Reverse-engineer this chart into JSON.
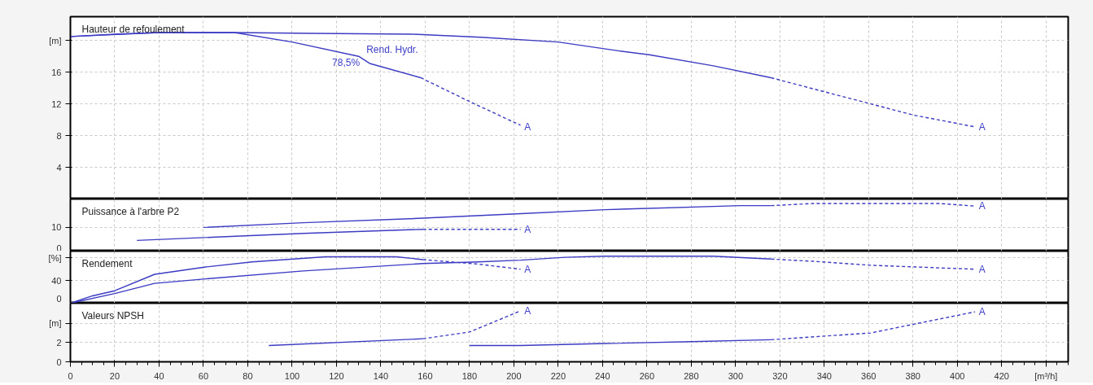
{
  "chart_data": [
    {
      "type": "line",
      "title": "Hauteur de refoulement",
      "xlim": [
        0,
        450
      ],
      "xticks": [
        0,
        20,
        40,
        60,
        80,
        100,
        120,
        140,
        160,
        180,
        200,
        220,
        240,
        260,
        280,
        300,
        320,
        340,
        360,
        380,
        400,
        420,
        440
      ],
      "ylim": [
        0,
        23
      ],
      "yticks": [
        4,
        8,
        12,
        16,
        {
          "value": 20,
          "label": "[m]"
        }
      ],
      "grid": true,
      "tick_labels": "y",
      "series": [
        {
          "color": "#3b3bc4",
          "line_style": "solid",
          "x": [
            0,
            20,
            40,
            74,
            110,
            154,
            185,
            220,
            247,
            261,
            290,
            316
          ],
          "values": [
            20.5,
            20.8,
            21.0,
            21.0,
            20.9,
            20.8,
            20.4,
            19.8,
            18.7,
            18.2,
            16.8,
            15.3
          ]
        },
        {
          "color": "#3b3bc4",
          "line_style": "dashed",
          "x": [
            316,
            335,
            361,
            380,
            408
          ],
          "values": [
            15.3,
            13.9,
            12.0,
            10.6,
            9.1
          ]
        },
        {
          "color": "#3b3bc4",
          "line_style": "solid",
          "x": [
            0,
            40,
            74,
            100,
            130,
            135,
            158
          ],
          "values": [
            20.5,
            21.0,
            21.0,
            19.8,
            18.0,
            17.1,
            15.3
          ]
        },
        {
          "color": "#3b3bc4",
          "line_style": "dashed",
          "x": [
            158,
            180,
            203
          ],
          "values": [
            15.3,
            12.3,
            9.3
          ]
        }
      ],
      "annotations": [
        "Rend. Hydr.",
        {
          "text": "78,5%",
          "x": 132,
          "y": 17.6
        },
        {
          "text": "A",
          "x": 204,
          "y": 9.1
        },
        {
          "text": "A",
          "x": 409,
          "y": 9.1
        }
      ]
    },
    {
      "type": "line",
      "title": "Puissance à l'arbre P2",
      "xlim": [
        0,
        450
      ],
      "xticks": [
        0,
        20,
        40,
        60,
        80,
        100,
        120,
        140,
        160,
        180,
        200,
        220,
        240,
        260,
        280,
        300,
        320,
        340,
        360,
        380,
        400,
        420,
        440
      ],
      "ylim": [
        0,
        22
      ],
      "yticks": [
        0,
        10
      ],
      "grid": true,
      "tick_labels": "y",
      "series": [
        {
          "color": "#3b3bc4",
          "line_style": "solid",
          "x": [
            60,
            105,
            159,
            203,
            241,
            302,
            316
          ],
          "values": [
            10.0,
            12.0,
            13.9,
            15.8,
            17.5,
            19.2,
            19.2
          ]
        },
        {
          "color": "#3b3bc4",
          "line_style": "dashed",
          "x": [
            316,
            335,
            392,
            408
          ],
          "values": [
            19.2,
            20.1,
            20.1,
            19.0
          ]
        },
        {
          "color": "#3b3bc4",
          "line_style": "solid",
          "x": [
            30,
            105,
            159
          ],
          "values": [
            4.5,
            7.5,
            9.2
          ]
        },
        {
          "color": "#3b3bc4",
          "line_style": "dashed",
          "x": [
            159,
            203
          ],
          "values": [
            9.2,
            9.2
          ]
        }
      ],
      "annotations": [
        {
          "text": "A",
          "x": 204,
          "y": 9.2
        },
        {
          "text": "A",
          "x": 409,
          "y": 19.0
        }
      ]
    },
    {
      "type": "line",
      "title": "Rendement",
      "xlim": [
        0,
        450
      ],
      "xticks": [
        0,
        20,
        40,
        60,
        80,
        100,
        120,
        140,
        160,
        180,
        200,
        220,
        240,
        260,
        280,
        300,
        320,
        340,
        360,
        380,
        400,
        420,
        440
      ],
      "ylim": [
        0,
        92
      ],
      "yticks": [
        0,
        40,
        {
          "value": 80,
          "label": "[%]"
        }
      ],
      "grid": true,
      "tick_labels": "y",
      "series": [
        {
          "color": "#3b3bc4",
          "line_style": "solid",
          "x": [
            0,
            10,
            20,
            38,
            61,
            82,
            115,
            147,
            159
          ],
          "values": [
            0,
            13,
            22,
            51,
            64,
            73,
            82,
            82,
            77
          ]
        },
        {
          "color": "#3b3bc4",
          "line_style": "dashed",
          "x": [
            159,
            184,
            203
          ],
          "values": [
            77,
            69,
            60
          ]
        },
        {
          "color": "#3b3bc4",
          "line_style": "solid",
          "x": [
            0,
            20,
            38,
            61,
            105,
            159,
            184,
            203,
            223,
            241,
            290,
            316
          ],
          "values": [
            0,
            17,
            35,
            43,
            57,
            70,
            73,
            76,
            81,
            83,
            83,
            78
          ]
        },
        {
          "color": "#3b3bc4",
          "line_style": "dashed",
          "x": [
            316,
            335,
            361,
            408
          ],
          "values": [
            78,
            74,
            67,
            60
          ]
        }
      ],
      "annotations": [
        {
          "text": "A",
          "x": 204,
          "y": 60
        },
        {
          "text": "A",
          "x": 409,
          "y": 60
        }
      ]
    },
    {
      "type": "line",
      "title": "Valeurs NPSH",
      "xlim": [
        0,
        450
      ],
      "xticks": [
        0,
        20,
        40,
        60,
        80,
        100,
        120,
        140,
        160,
        180,
        200,
        220,
        240,
        260,
        280,
        300,
        320,
        340,
        360,
        380,
        400,
        420,
        {
          "value": 440,
          "label": "[m³/h]"
        }
      ],
      "ylim": [
        0,
        6.1
      ],
      "yticks": [
        0,
        2,
        {
          "value": 4,
          "label": "[m]"
        }
      ],
      "grid": true,
      "series": [
        {
          "color": "#3b3bc4",
          "line_style": "solid",
          "x": [
            89.5,
            159
          ],
          "values": [
            1.7,
            2.4
          ]
        },
        {
          "color": "#3b3bc4",
          "line_style": "dashed",
          "x": [
            159,
            180,
            203
          ],
          "values": [
            2.4,
            3.1,
            5.3
          ]
        },
        {
          "color": "#3b3bc4",
          "line_style": "solid",
          "x": [
            180,
            203,
            241,
            280,
            316
          ],
          "values": [
            1.7,
            1.7,
            1.9,
            2.1,
            2.3
          ]
        },
        {
          "color": "#3b3bc4",
          "line_style": "dashed",
          "x": [
            316,
            361,
            380,
            408
          ],
          "values": [
            2.3,
            3.0,
            3.9,
            5.2
          ]
        }
      ],
      "annotations": [
        {
          "text": "A",
          "x": 204,
          "y": 5.3
        },
        {
          "text": "A",
          "x": 409,
          "y": 5.2
        }
      ]
    }
  ]
}
